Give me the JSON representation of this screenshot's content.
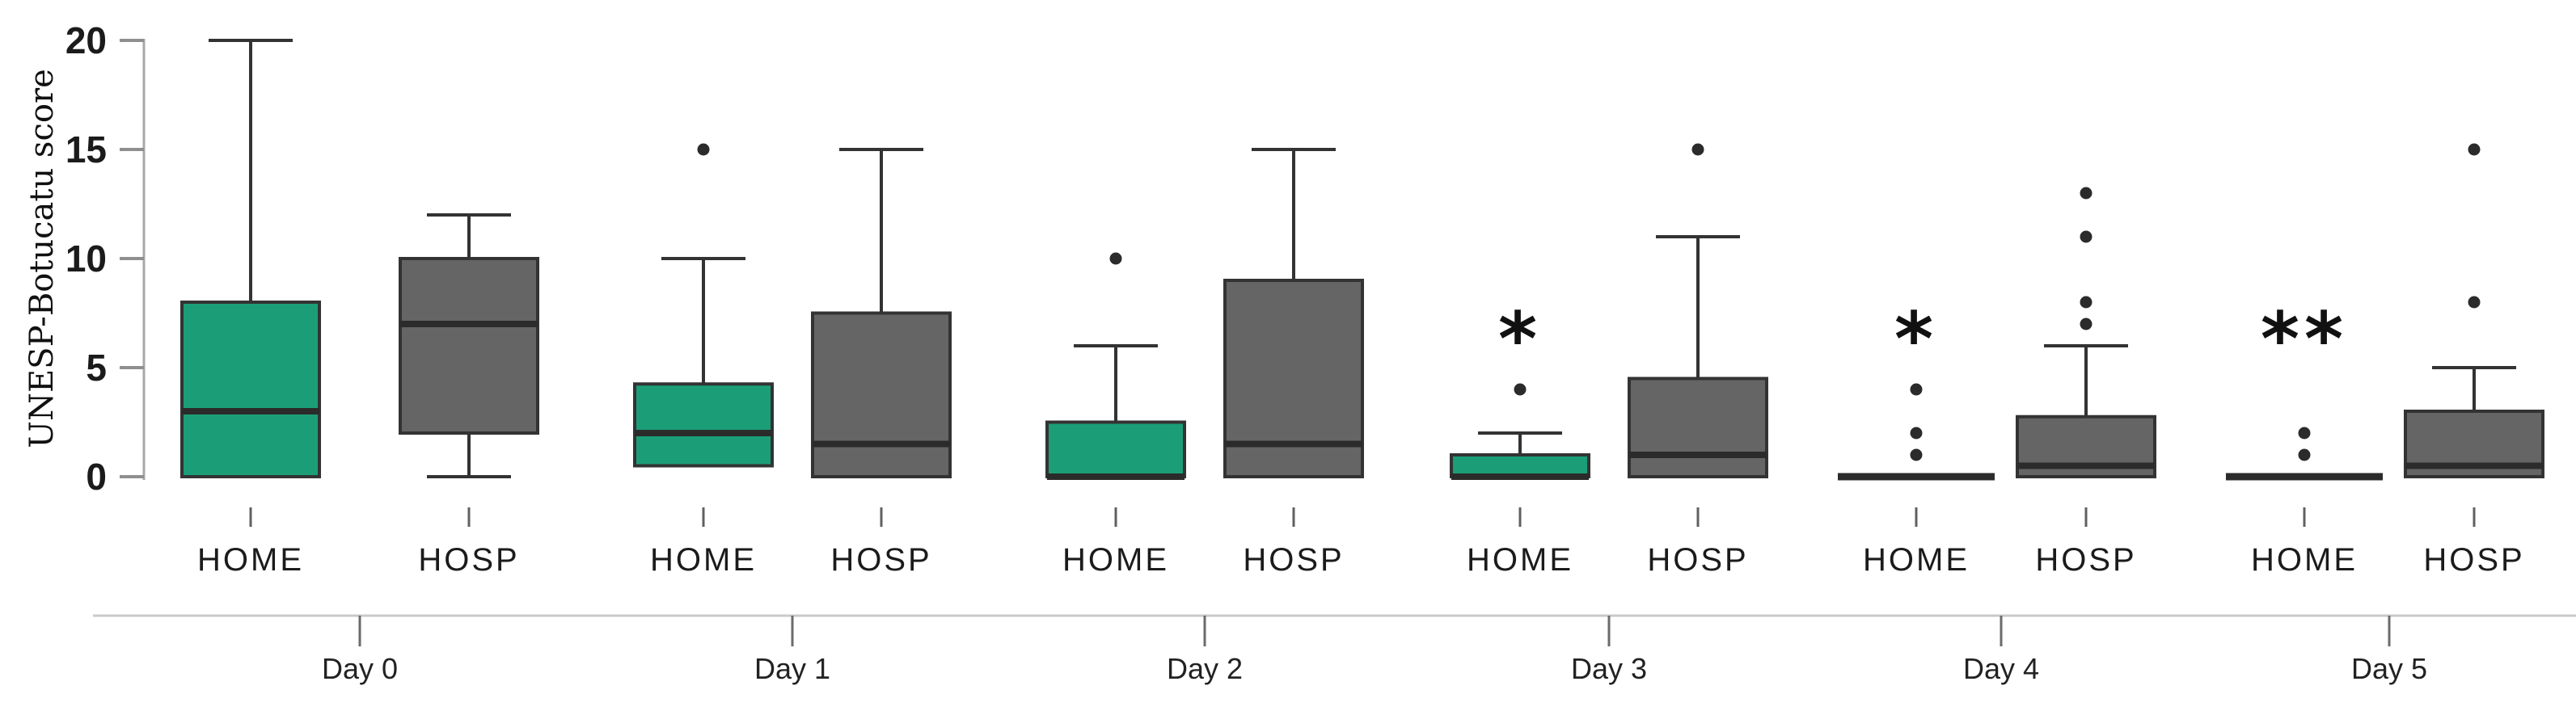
{
  "chart_data": {
    "type": "boxplot",
    "title": "",
    "ylabel": "UNESP-Botucatu score",
    "xlabel": "",
    "ylim": [
      0,
      20
    ],
    "yticks": [
      20,
      15,
      10,
      5,
      0
    ],
    "grid": false,
    "legend": "none",
    "group_labels": [
      "Day 0",
      "Day 1",
      "Day 2",
      "Day 3",
      "Day 4",
      "Day 5"
    ],
    "series_labels": [
      "HOME",
      "HOSP"
    ],
    "colors": {
      "home_fill": "#1B9E77",
      "hosp_fill": "#656565",
      "box_border": "#333333",
      "median_line": "#2b2b2b",
      "outlier": "#2b2b2b",
      "axis_line": "#a8a8a8",
      "baseline": "#c9c9c9",
      "text": "#1b1b1b"
    },
    "boxes": [
      {
        "day": "Day 0",
        "group": "HOME",
        "q1": 0,
        "median": 3,
        "q3": 8,
        "whisker_low": null,
        "whisker_high": 20,
        "outliers": [],
        "annotation": ""
      },
      {
        "day": "Day 0",
        "group": "HOSP",
        "q1": 2,
        "median": 7,
        "q3": 10,
        "whisker_low": 0,
        "whisker_high": 12,
        "outliers": [],
        "annotation": ""
      },
      {
        "day": "Day 1",
        "group": "HOME",
        "q1": 0.5,
        "median": 2,
        "q3": 4.25,
        "whisker_low": null,
        "whisker_high": 10,
        "outliers": [
          15
        ],
        "annotation": ""
      },
      {
        "day": "Day 1",
        "group": "HOSP",
        "q1": 0,
        "median": 1.5,
        "q3": 7.5,
        "whisker_low": null,
        "whisker_high": 15,
        "outliers": [],
        "annotation": ""
      },
      {
        "day": "Day 2",
        "group": "HOME",
        "q1": 0,
        "median": 0,
        "q3": 2.5,
        "whisker_low": null,
        "whisker_high": 6,
        "outliers": [
          10
        ],
        "annotation": ""
      },
      {
        "day": "Day 2",
        "group": "HOSP",
        "q1": 0,
        "median": 1.5,
        "q3": 9,
        "whisker_low": null,
        "whisker_high": 15,
        "outliers": [],
        "annotation": ""
      },
      {
        "day": "Day 3",
        "group": "HOME",
        "q1": 0,
        "median": 0,
        "q3": 1,
        "whisker_low": null,
        "whisker_high": 2,
        "outliers": [
          4
        ],
        "annotation": "*"
      },
      {
        "day": "Day 3",
        "group": "HOSP",
        "q1": 0,
        "median": 1,
        "q3": 4.5,
        "whisker_low": null,
        "whisker_high": 11,
        "outliers": [
          15
        ],
        "annotation": ""
      },
      {
        "day": "Day 4",
        "group": "HOME",
        "q1": 0,
        "median": 0,
        "q3": 0,
        "whisker_low": null,
        "whisker_high": null,
        "outliers": [
          1,
          2,
          4
        ],
        "annotation": "*"
      },
      {
        "day": "Day 4",
        "group": "HOSP",
        "q1": 0,
        "median": 0.5,
        "q3": 2.75,
        "whisker_low": null,
        "whisker_high": 6,
        "outliers": [
          7,
          8,
          11,
          13
        ],
        "annotation": ""
      },
      {
        "day": "Day 5",
        "group": "HOME",
        "q1": 0,
        "median": 0,
        "q3": 0,
        "whisker_low": null,
        "whisker_high": null,
        "outliers": [
          1,
          2
        ],
        "annotation": "**"
      },
      {
        "day": "Day 5",
        "group": "HOSP",
        "q1": 0,
        "median": 0.5,
        "q3": 3,
        "whisker_low": null,
        "whisker_high": 5,
        "outliers": [
          8,
          15
        ],
        "annotation": ""
      }
    ]
  }
}
